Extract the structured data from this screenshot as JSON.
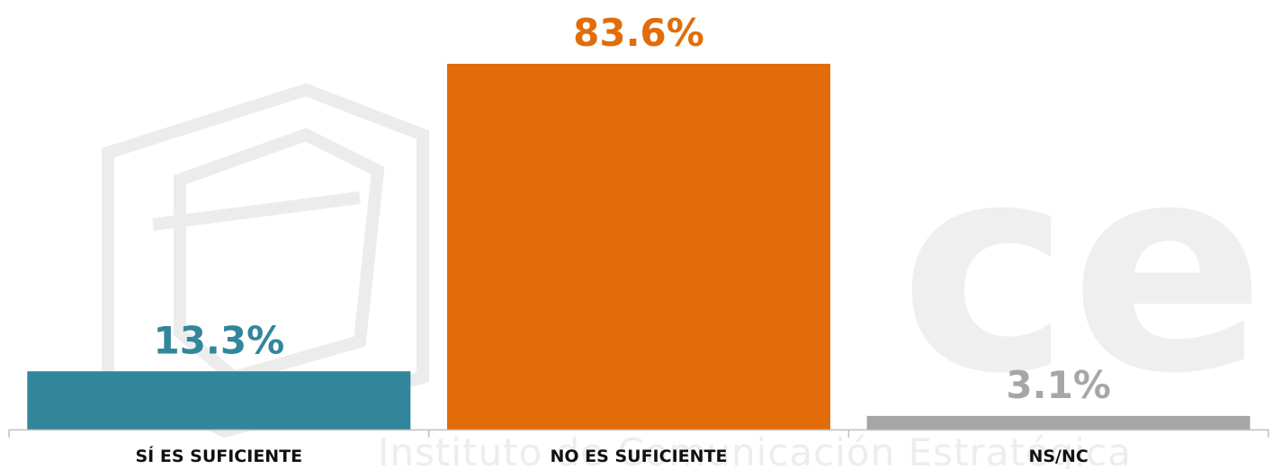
{
  "watermark": {
    "logo_text": "ce",
    "tagline": "Instituto de Comunicación Estratégica"
  },
  "chart_data": {
    "type": "bar",
    "categories": [
      "SÍ ES SUFICIENTE",
      "NO ES SUFICIENTE",
      "NS/NC"
    ],
    "values": [
      13.3,
      83.6,
      3.1
    ],
    "value_labels": [
      "13.3%",
      "83.6%",
      "3.1%"
    ],
    "colors": [
      "#31869b",
      "#e36c0a",
      "#a6a6a6"
    ],
    "title": "",
    "xlabel": "",
    "ylabel": "",
    "ylim": [
      0,
      83.6
    ],
    "grid": false,
    "legend": "none"
  }
}
